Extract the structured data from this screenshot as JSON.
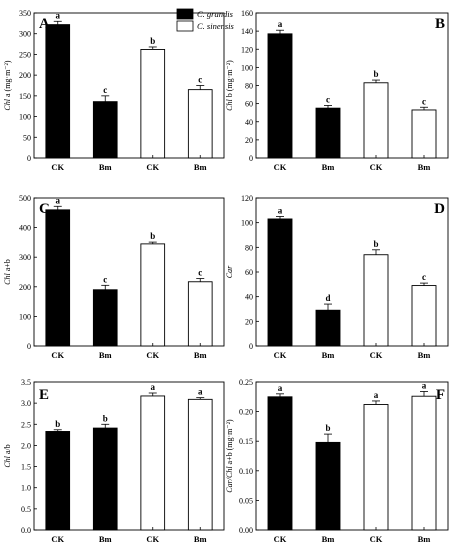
{
  "legend": {
    "items": [
      {
        "name": "C. grandis",
        "color": "#000000"
      },
      {
        "name": "C. sinensis",
        "color": "#ffffff"
      }
    ]
  },
  "chart_data": [
    {
      "type": "bar",
      "panel": "A",
      "ylabel": "Chl a (mg·m⁻²)",
      "ylabel_italic": "Chl",
      "ylabel_rest": " a (mg·m⁻²)",
      "categories": [
        "CK",
        "Bm",
        "CK",
        "Bm"
      ],
      "values": [
        322,
        136,
        262,
        165
      ],
      "errors": [
        8,
        14,
        6,
        10
      ],
      "series_of_bar": [
        "C. grandis",
        "C. grandis",
        "C. sinensis",
        "C. sinensis"
      ],
      "letters": [
        "a",
        "c",
        "b",
        "c"
      ],
      "ylim": [
        0,
        350
      ],
      "ticks": [
        0,
        50,
        100,
        150,
        200,
        250,
        300,
        350
      ],
      "tick_labels": [
        "0",
        "50",
        "100",
        "150",
        "200",
        "250",
        "300",
        "350"
      ],
      "grid": false
    },
    {
      "type": "bar",
      "panel": "B",
      "ylabel": "Chl b (mg·m⁻²)",
      "ylabel_italic": "Chl",
      "ylabel_rest": " b (mg·m⁻²)",
      "categories": [
        "CK",
        "Bm",
        "CK",
        "Bm"
      ],
      "values": [
        137,
        55,
        83,
        53
      ],
      "errors": [
        4,
        3,
        3,
        3
      ],
      "series_of_bar": [
        "C. grandis",
        "C. grandis",
        "C. sinensis",
        "C. sinensis"
      ],
      "letters": [
        "a",
        "c",
        "b",
        "c"
      ],
      "ylim": [
        0,
        160
      ],
      "ticks": [
        0,
        20,
        40,
        60,
        80,
        100,
        120,
        140,
        160
      ],
      "tick_labels": [
        "0",
        "20",
        "40",
        "60",
        "80",
        "100",
        "120",
        "140",
        "160"
      ],
      "grid": false
    },
    {
      "type": "bar",
      "panel": "C",
      "ylabel": "Chl a+b",
      "ylabel_italic": "Chl",
      "ylabel_rest": " a+b",
      "categories": [
        "CK",
        "Bm",
        "CK",
        "Bm"
      ],
      "values": [
        460,
        190,
        345,
        217
      ],
      "errors": [
        12,
        15,
        6,
        11
      ],
      "series_of_bar": [
        "C. grandis",
        "C. grandis",
        "C. sinensis",
        "C. sinensis"
      ],
      "letters": [
        "a",
        "c",
        "b",
        "c"
      ],
      "ylim": [
        0,
        500
      ],
      "ticks": [
        0,
        100,
        200,
        300,
        400,
        500
      ],
      "tick_labels": [
        "0",
        "100",
        "200",
        "300",
        "400",
        "500"
      ],
      "grid": false
    },
    {
      "type": "bar",
      "panel": "D",
      "ylabel": "Car",
      "ylabel_italic": "Car",
      "ylabel_rest": "",
      "categories": [
        "CK",
        "Bm",
        "CK",
        "Bm"
      ],
      "values": [
        103,
        29,
        74,
        49
      ],
      "errors": [
        2,
        5,
        4,
        2
      ],
      "series_of_bar": [
        "C. grandis",
        "C. grandis",
        "C. sinensis",
        "C. sinensis"
      ],
      "letters": [
        "a",
        "d",
        "b",
        "c"
      ],
      "ylim": [
        0,
        120
      ],
      "ticks": [
        0,
        20,
        40,
        60,
        80,
        100,
        120
      ],
      "tick_labels": [
        "0",
        "20",
        "40",
        "60",
        "80",
        "100",
        "120"
      ],
      "grid": false
    },
    {
      "type": "bar",
      "panel": "E",
      "ylabel": "Chl a/b",
      "ylabel_italic": "Chl",
      "ylabel_rest": " a/b",
      "categories": [
        "CK",
        "Bm",
        "CK",
        "Bm"
      ],
      "values": [
        2.33,
        2.41,
        3.17,
        3.09
      ],
      "errors": [
        0.04,
        0.09,
        0.07,
        0.04
      ],
      "series_of_bar": [
        "C. grandis",
        "C. grandis",
        "C. sinensis",
        "C. sinensis"
      ],
      "letters": [
        "b",
        "b",
        "a",
        "a"
      ],
      "ylim": [
        0,
        3.5
      ],
      "ticks": [
        0,
        0.5,
        1.0,
        1.5,
        2.0,
        2.5,
        3.0,
        3.5
      ],
      "tick_labels": [
        "0.0",
        "0.5",
        "1.0",
        "1.5",
        "2.0",
        "2.5",
        "3.0",
        "3.5"
      ],
      "grid": false
    },
    {
      "type": "bar",
      "panel": "F",
      "ylabel": "Car/Chl a+b (mg·m⁻²)",
      "ylabel_italic": "Car/Chl",
      "ylabel_rest": " a+b (mg·m⁻²)",
      "categories": [
        "CK",
        "Bm",
        "CK",
        "Bm"
      ],
      "values": [
        0.225,
        0.148,
        0.212,
        0.226
      ],
      "errors": [
        0.005,
        0.014,
        0.006,
        0.008
      ],
      "series_of_bar": [
        "C. grandis",
        "C. grandis",
        "C. sinensis",
        "C. sinensis"
      ],
      "letters": [
        "a",
        "b",
        "a",
        "a"
      ],
      "ylim": [
        0,
        0.25
      ],
      "ticks": [
        0,
        0.05,
        0.1,
        0.15,
        0.2,
        0.25
      ],
      "tick_labels": [
        "0.00",
        "0.05",
        "0.10",
        "0.15",
        "0.20",
        "0.25"
      ],
      "grid": false
    }
  ]
}
